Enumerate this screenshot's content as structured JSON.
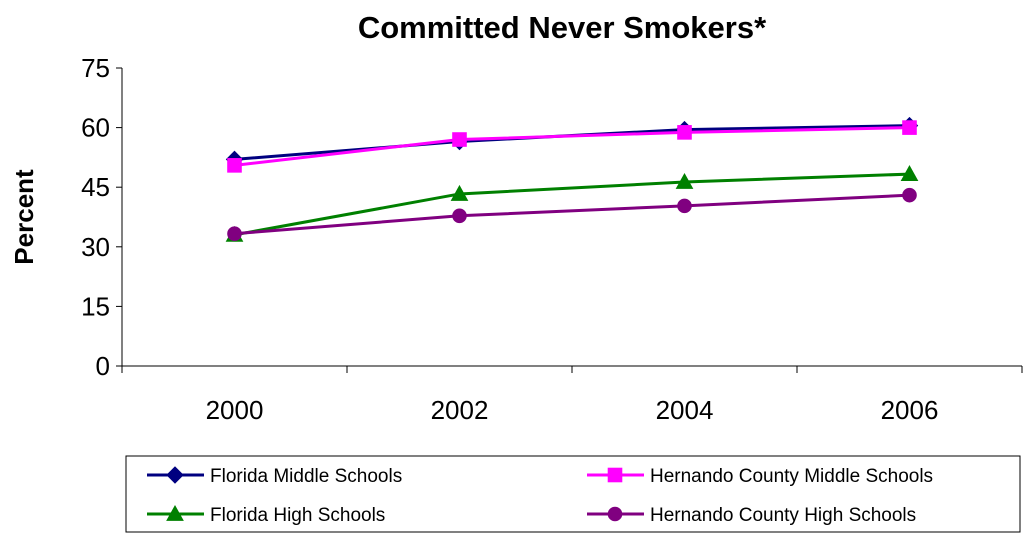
{
  "chart_data": {
    "type": "line",
    "title": "Committed Never Smokers*",
    "xlabel": "",
    "ylabel": "Percent",
    "categories": [
      "2000",
      "2002",
      "2004",
      "2006"
    ],
    "ylim": [
      0,
      75
    ],
    "yticks": [
      0,
      15,
      30,
      45,
      60,
      75
    ],
    "grid": false,
    "legend_position": "bottom",
    "series": [
      {
        "name": "Florida Middle Schools",
        "values": [
          52.0,
          56.5,
          59.5,
          60.5
        ],
        "color": "#000080",
        "marker": "diamond"
      },
      {
        "name": "Hernando County Middle Schools",
        "values": [
          50.5,
          57.0,
          58.8,
          60.0
        ],
        "color": "#ff00ff",
        "marker": "square"
      },
      {
        "name": "Florida High Schools",
        "values": [
          33.0,
          43.3,
          46.3,
          48.3
        ],
        "color": "#008000",
        "marker": "triangle"
      },
      {
        "name": "Hernando County High Schools",
        "values": [
          33.3,
          37.8,
          40.3,
          43.0
        ],
        "color": "#800080",
        "marker": "circle"
      }
    ]
  }
}
